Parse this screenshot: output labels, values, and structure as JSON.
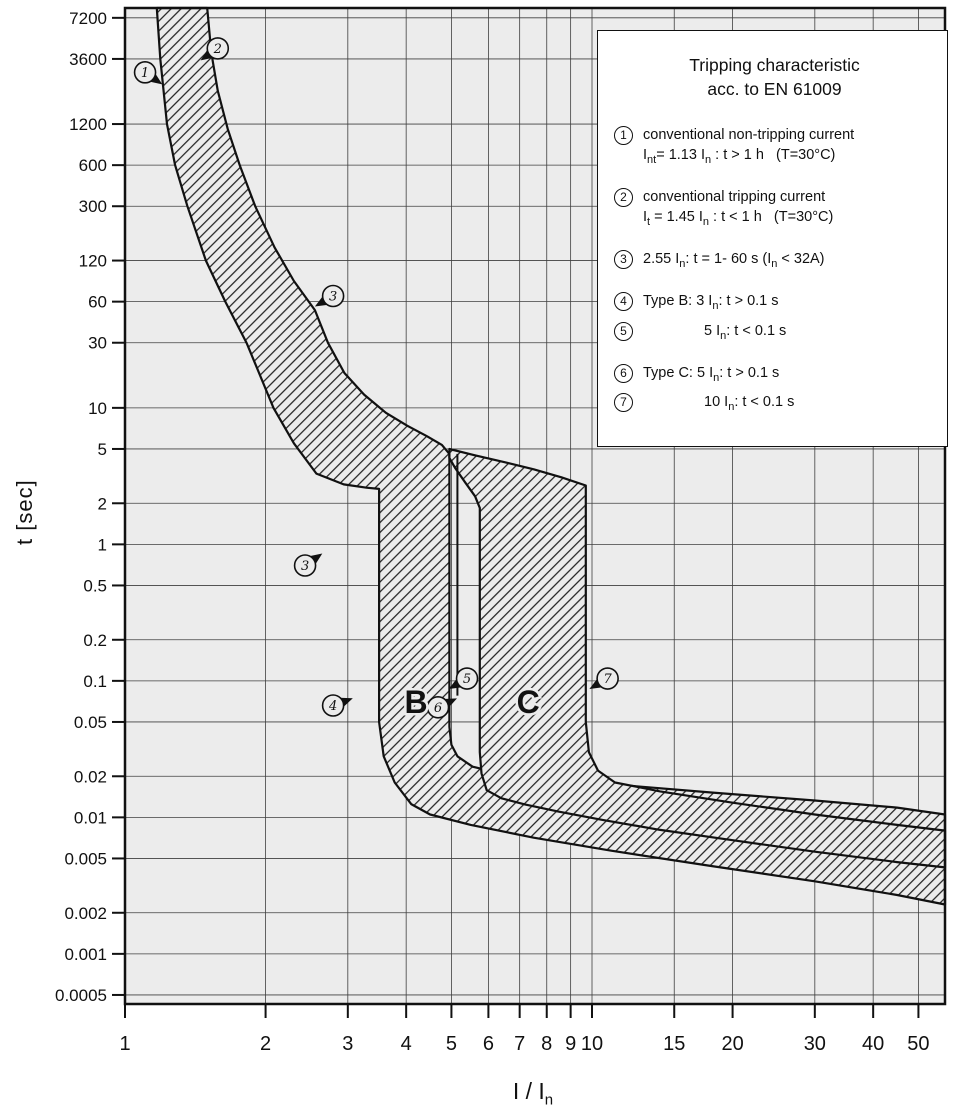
{
  "colors": {
    "plot_bg": "#ececec",
    "grid": "#3f3f3f",
    "ink": "#111111"
  },
  "legend": {
    "title_line1": "Tripping characteristic",
    "title_line2": "acc. to EN 61009",
    "items": [
      {
        "num": "1",
        "lines": [
          "conventional non-tripping current",
          "I[nt]= 1.13 I[n] : t > 1 h   (T=30°C)"
        ],
        "indent": false,
        "gap": false
      },
      {
        "num": "2",
        "lines": [
          "conventional tripping current",
          "I[t] = 1.45 I[n] : t < 1 h   (T=30°C)"
        ],
        "indent": false,
        "gap": true
      },
      {
        "num": "3",
        "lines": [
          "2.55 I[n]: t = 1- 60 s (I[n] < 32A)"
        ],
        "indent": false,
        "gap": true
      },
      {
        "num": "4",
        "lines": [
          "Type B: 3 I[n]: t > 0.1 s"
        ],
        "indent": false,
        "gap": true
      },
      {
        "num": "5",
        "lines": [
          "5 I[n]: t < 0.1 s"
        ],
        "indent": true,
        "gap": false
      },
      {
        "num": "6",
        "lines": [
          "Type C: 5 I[n]: t > 0.1 s"
        ],
        "indent": false,
        "gap": true
      },
      {
        "num": "7",
        "lines": [
          "10 I[n]: t < 0.1 s"
        ],
        "indent": true,
        "gap": false
      }
    ]
  },
  "chart_data": {
    "type": "area",
    "title": "Tripping characteristic acc. to EN 61009",
    "xlabel": "I / I[n]",
    "ylabel": "t [sec]",
    "x_scale": "log",
    "y_scale": "log",
    "xlim": [
      1,
      57
    ],
    "ylim": [
      0.0005,
      7200
    ],
    "grid": true,
    "x_ticks": [
      "1",
      "2",
      "3",
      "4",
      "5",
      "6",
      "7",
      "8",
      "9",
      "10",
      "15",
      "20",
      "30",
      "40",
      "50"
    ],
    "y_ticks": [
      "7200",
      "3600",
      "1200",
      "600",
      "300",
      "120",
      "60",
      "30",
      "10",
      "5",
      "2",
      "1",
      "0.5",
      "0.2",
      "0.1",
      "0.05",
      "0.02",
      "0.01",
      "0.005",
      "0.002",
      "0.001",
      "0.0005"
    ],
    "bands": [
      {
        "name": "type-b-band",
        "desc": "Thermal band between conventional non-tripping current 1.13 In and tripping current 1.45 In, merging into Type B magnetic band 3-5 In and instantaneous trip-time band",
        "points": [
          [
            1.17,
            8500
          ],
          [
            1.19,
            3600
          ],
          [
            1.23,
            1200
          ],
          [
            1.28,
            600
          ],
          [
            1.36,
            300
          ],
          [
            1.49,
            120
          ],
          [
            1.64,
            60
          ],
          [
            1.82,
            30
          ],
          [
            2.08,
            10
          ],
          [
            2.3,
            5.5
          ],
          [
            2.57,
            3.3
          ],
          [
            2.94,
            2.75
          ],
          [
            3.29,
            2.6
          ],
          [
            3.5,
            2.55
          ],
          [
            3.5,
            0.05
          ],
          [
            3.58,
            0.028
          ],
          [
            3.78,
            0.018
          ],
          [
            4.1,
            0.0125
          ],
          [
            4.5,
            0.0105
          ],
          [
            5.5,
            0.0088
          ],
          [
            7.5,
            0.0071
          ],
          [
            11,
            0.0057
          ],
          [
            18,
            0.0044
          ],
          [
            30,
            0.0034
          ],
          [
            45,
            0.0027
          ],
          [
            57,
            0.0023
          ],
          [
            57,
            0.0105
          ],
          [
            45,
            0.0118
          ],
          [
            30,
            0.0133
          ],
          [
            18,
            0.0152
          ],
          [
            11,
            0.0175
          ],
          [
            7.5,
            0.0198
          ],
          [
            6.2,
            0.0215
          ],
          [
            5.55,
            0.0235
          ],
          [
            5.15,
            0.028
          ],
          [
            5.0,
            0.034
          ],
          [
            4.95,
            0.046
          ],
          [
            4.95,
            4.6
          ],
          [
            4.77,
            5.35
          ],
          [
            4.43,
            6.2
          ],
          [
            4.02,
            7.4
          ],
          [
            3.62,
            9.2
          ],
          [
            3.25,
            12.5
          ],
          [
            2.95,
            18
          ],
          [
            2.72,
            30
          ],
          [
            2.55,
            52
          ],
          [
            2.3,
            85
          ],
          [
            2.09,
            150
          ],
          [
            1.9,
            300
          ],
          [
            1.76,
            600
          ],
          [
            1.66,
            1100
          ],
          [
            1.58,
            2100
          ],
          [
            1.53,
            4000
          ],
          [
            1.5,
            8500
          ]
        ]
      },
      {
        "name": "type-c-band",
        "desc": "Type C magnetic band 5-10 In with instantaneous trip-time band",
        "points": [
          [
            4.95,
            5.0
          ],
          [
            5.6,
            4.5
          ],
          [
            6.5,
            4.0
          ],
          [
            7.5,
            3.55
          ],
          [
            8.6,
            3.1
          ],
          [
            9.7,
            2.7
          ],
          [
            9.7,
            0.05
          ],
          [
            9.85,
            0.03
          ],
          [
            10.3,
            0.022
          ],
          [
            11.2,
            0.018
          ],
          [
            14,
            0.0155
          ],
          [
            20,
            0.0128
          ],
          [
            30,
            0.0105
          ],
          [
            45,
            0.0088
          ],
          [
            57,
            0.008
          ],
          [
            57,
            0.0043
          ],
          [
            45,
            0.0047
          ],
          [
            30,
            0.0056
          ],
          [
            20,
            0.0068
          ],
          [
            14,
            0.0081
          ],
          [
            10.5,
            0.0096
          ],
          [
            8.5,
            0.011
          ],
          [
            7.2,
            0.0124
          ],
          [
            6.4,
            0.0138
          ],
          [
            5.95,
            0.0158
          ],
          [
            5.8,
            0.021
          ],
          [
            5.75,
            0.03
          ],
          [
            5.75,
            1.85
          ],
          [
            5.62,
            2.25
          ],
          [
            5.35,
            2.85
          ],
          [
            5.1,
            3.6
          ],
          [
            4.95,
            4.3
          ]
        ]
      }
    ],
    "boundary_line": {
      "name": "five-in-line",
      "x": 5.15,
      "t_top": 4.6,
      "t_bottom": 0.078
    },
    "markers": [
      {
        "label": "1",
        "x": 1.104,
        "y": 2870,
        "angle": 35
      },
      {
        "label": "2",
        "x": 1.58,
        "y": 4300,
        "angle": 145
      },
      {
        "label": "3",
        "x": 2.79,
        "y": 66,
        "angle": 150
      },
      {
        "label": "3",
        "x": 2.43,
        "y": 0.7,
        "angle": -35
      },
      {
        "label": "4",
        "x": 2.79,
        "y": 0.066,
        "angle": -20
      },
      {
        "label": "5",
        "x": 5.4,
        "y": 0.104,
        "angle": 150
      },
      {
        "label": "6",
        "x": 4.68,
        "y": 0.064,
        "angle": -25
      },
      {
        "label": "7",
        "x": 10.8,
        "y": 0.104,
        "angle": 150
      }
    ],
    "region_labels": [
      {
        "text": "B",
        "x": 4.2,
        "y": 0.058
      },
      {
        "text": "C",
        "x": 7.3,
        "y": 0.058
      }
    ]
  }
}
